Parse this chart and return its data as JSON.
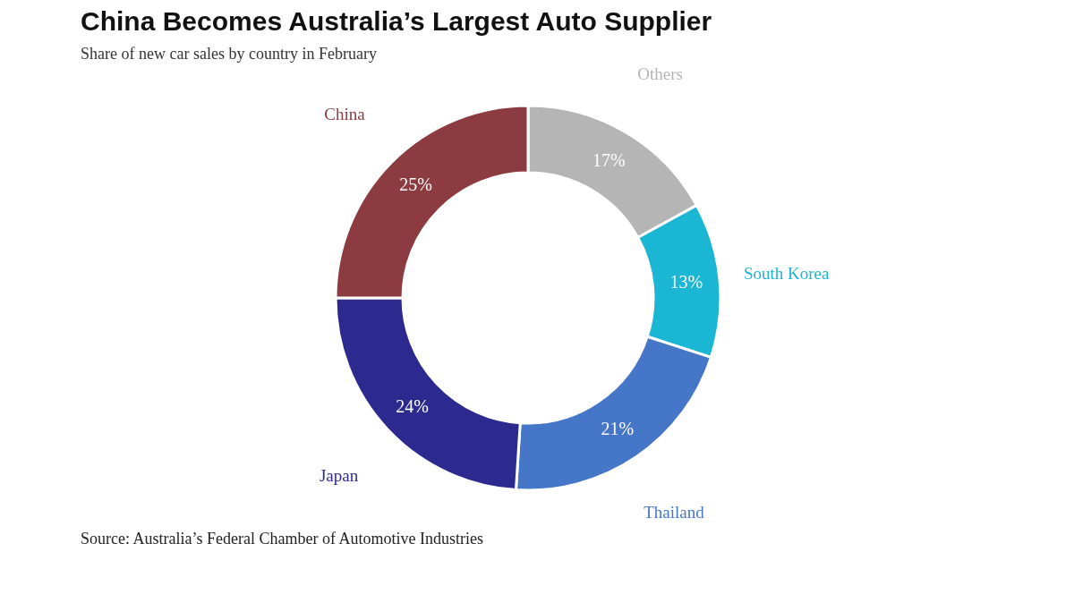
{
  "chart_data": {
    "type": "donut",
    "title": "China Becomes Australia’s Largest Auto Supplier",
    "subtitle": "Share of new car sales by country in February",
    "categories": [
      "Others",
      "South Korea",
      "Thailand",
      "Japan",
      "China"
    ],
    "values": [
      17,
      13,
      21,
      24,
      25
    ],
    "colors": [
      "#b5b5b5",
      "#1bb6d3",
      "#4676c8",
      "#2c2a8e",
      "#8c3b40"
    ],
    "value_labels": [
      "17%",
      "13%",
      "21%",
      "24%",
      "25%"
    ],
    "legend": false,
    "annotations": [
      "Source: Australia’s Federal Chamber of Automotive Industries"
    ]
  }
}
